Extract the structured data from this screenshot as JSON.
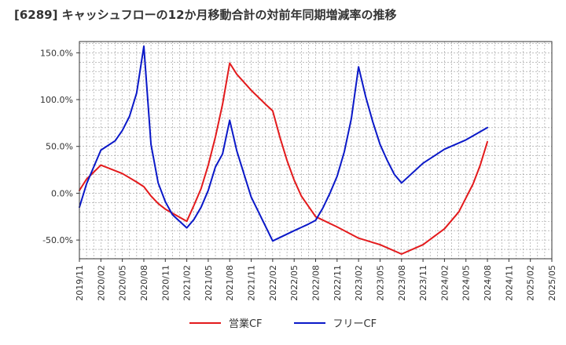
{
  "chart_data": {
    "type": "line",
    "title": "[6289]  キャッシュフローの12か月移動合計の対前年同期増減率の推移",
    "x": [
      "2019/11",
      "2020/02",
      "2020/05",
      "2020/08",
      "2020/11",
      "2021/02",
      "2021/05",
      "2021/08",
      "2021/11",
      "2022/02",
      "2022/05",
      "2022/08",
      "2022/11",
      "2023/02",
      "2023/05",
      "2023/08",
      "2023/11",
      "2024/02",
      "2024/05",
      "2024/08",
      "2024/11",
      "2025/02",
      "2025/05"
    ],
    "xlim": [
      "2019/11",
      "2025/05"
    ],
    "yticks": [
      "150.0%",
      "100.0%",
      "50.0%",
      "0.0%",
      "-50.0%"
    ],
    "ylim": [
      -70,
      162
    ],
    "grid": true,
    "legend_position": "bottom",
    "series": [
      {
        "name": "営業CF",
        "color": "#e31a1c",
        "points": [
          [
            "2019/11",
            3
          ],
          [
            "2019/12",
            15
          ],
          [
            "2020/02",
            30
          ],
          [
            "2020/05",
            21
          ],
          [
            "2020/07",
            12
          ],
          [
            "2020/08",
            7
          ],
          [
            "2020/09",
            -3
          ],
          [
            "2020/10",
            -11
          ],
          [
            "2020/11",
            -17
          ],
          [
            "2021/02",
            -30
          ],
          [
            "2021/03",
            -13
          ],
          [
            "2021/04",
            5
          ],
          [
            "2021/05",
            30
          ],
          [
            "2021/06",
            60
          ],
          [
            "2021/07",
            95
          ],
          [
            "2021/08",
            139
          ],
          [
            "2021/09",
            127
          ],
          [
            "2021/11",
            110
          ],
          [
            "2022/01",
            95
          ],
          [
            "2022/02",
            88
          ],
          [
            "2022/03",
            60
          ],
          [
            "2022/04",
            35
          ],
          [
            "2022/05",
            14
          ],
          [
            "2022/06",
            -3
          ],
          [
            "2022/08",
            -25
          ],
          [
            "2022/11",
            -36
          ],
          [
            "2023/02",
            -48
          ],
          [
            "2023/05",
            -55
          ],
          [
            "2023/08",
            -65
          ],
          [
            "2023/11",
            -55
          ],
          [
            "2024/02",
            -38
          ],
          [
            "2024/04",
            -20
          ],
          [
            "2024/05",
            -5
          ],
          [
            "2024/06",
            10
          ],
          [
            "2024/07",
            30
          ],
          [
            "2024/08",
            55
          ]
        ]
      },
      {
        "name": "フリーCF",
        "color": "#0a18c8",
        "points": [
          [
            "2019/11",
            -15
          ],
          [
            "2019/12",
            10
          ],
          [
            "2020/02",
            46
          ],
          [
            "2020/04",
            56
          ],
          [
            "2020/05",
            67
          ],
          [
            "2020/06",
            82
          ],
          [
            "2020/07",
            107
          ],
          [
            "2020/08",
            157
          ],
          [
            "2020/09",
            52
          ],
          [
            "2020/10",
            11
          ],
          [
            "2020/11",
            -9
          ],
          [
            "2020/12",
            -23
          ],
          [
            "2021/02",
            -37
          ],
          [
            "2021/03",
            -28
          ],
          [
            "2021/04",
            -15
          ],
          [
            "2021/05",
            3
          ],
          [
            "2021/06",
            28
          ],
          [
            "2021/07",
            42
          ],
          [
            "2021/08",
            78
          ],
          [
            "2021/09",
            45
          ],
          [
            "2021/11",
            -4
          ],
          [
            "2022/02",
            -51
          ],
          [
            "2022/05",
            -40
          ],
          [
            "2022/07",
            -33
          ],
          [
            "2022/08",
            -29
          ],
          [
            "2022/09",
            -16
          ],
          [
            "2022/10",
            0
          ],
          [
            "2022/11",
            18
          ],
          [
            "2022/12",
            44
          ],
          [
            "2023/01",
            80
          ],
          [
            "2023/02",
            135
          ],
          [
            "2023/03",
            103
          ],
          [
            "2023/04",
            76
          ],
          [
            "2023/05",
            52
          ],
          [
            "2023/06",
            35
          ],
          [
            "2023/07",
            20
          ],
          [
            "2023/08",
            11
          ],
          [
            "2023/11",
            32
          ],
          [
            "2024/02",
            47
          ],
          [
            "2024/05",
            57
          ],
          [
            "2024/08",
            70
          ]
        ]
      }
    ]
  }
}
